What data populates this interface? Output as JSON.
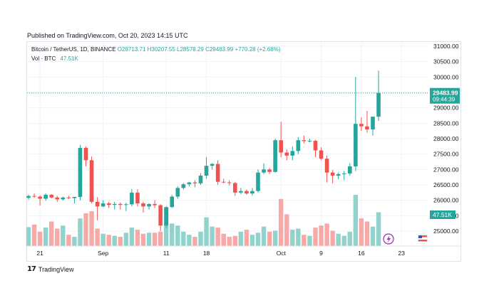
{
  "published_line": "Published on TradingView.com, Oct 20, 2023 14:15 UTC",
  "legend": {
    "symbol": "Bitcoin / TetherUS, 1D, BINANCE",
    "open": "O28713.71",
    "high": "H30207.55",
    "low": "L28578.29",
    "close": "C29483.99",
    "change": "+770.28 (+2.68%)"
  },
  "volume_legend": {
    "label": "Vol · BTC",
    "value": "47.51K"
  },
  "price_label": {
    "value": "29483.99",
    "countdown": "09:44:39"
  },
  "volume_label": "47.51K",
  "footer": {
    "logo": "17",
    "brand": "TradingView"
  },
  "colors": {
    "up": "#26a69a",
    "down": "#ef5350",
    "up_vol": "#92d2cc",
    "down_vol": "#f7a9a7",
    "grid": "#f0f3fa"
  },
  "chart_data": {
    "type": "candlestick",
    "y_axis": {
      "ticks": [
        25000,
        25500,
        26000,
        26500,
        27000,
        27500,
        28000,
        28500,
        29000,
        29500,
        30000,
        30500,
        31000
      ],
      "tick_labels": [
        "25000.00",
        "25500.00",
        "26000.00",
        "26500.00",
        "27000.00",
        "27500.00",
        "28000.00",
        "28500.00",
        "29000.00",
        "29500.00",
        "30000.00",
        "30500.00",
        "31000.00"
      ]
    },
    "x_axis": {
      "labels": [
        {
          "index": 2,
          "text": "21"
        },
        {
          "index": 13,
          "text": "Sep"
        },
        {
          "index": 24,
          "text": "11"
        },
        {
          "index": 31,
          "text": "18"
        },
        {
          "index": 44,
          "text": "Oct"
        },
        {
          "index": 51,
          "text": "9"
        },
        {
          "index": 58,
          "text": "16"
        },
        {
          "index": 65,
          "text": "23"
        }
      ]
    },
    "last_price": 29483.99,
    "ohlc": [
      [
        26080,
        26180,
        26020,
        26140
      ],
      [
        26140,
        26230,
        26080,
        26120
      ],
      [
        26120,
        26160,
        25830,
        26050
      ],
      [
        26050,
        26230,
        25990,
        26180
      ],
      [
        26180,
        26200,
        26060,
        26090
      ],
      [
        26090,
        26140,
        25950,
        26030
      ],
      [
        26030,
        26120,
        25990,
        26090
      ],
      [
        26090,
        26150,
        26040,
        26070
      ],
      [
        26070,
        26110,
        25900,
        26110
      ],
      [
        26110,
        27800,
        26000,
        27700
      ],
      [
        27700,
        27750,
        27100,
        27300
      ],
      [
        27300,
        27420,
        25900,
        25950
      ],
      [
        25950,
        26100,
        25350,
        25800
      ],
      [
        25800,
        26000,
        25780,
        25900
      ],
      [
        25900,
        25950,
        25750,
        25850
      ],
      [
        25850,
        25950,
        25700,
        25880
      ],
      [
        25880,
        25930,
        25700,
        25850
      ],
      [
        25850,
        25920,
        25650,
        25870
      ],
      [
        25870,
        26360,
        25800,
        26250
      ],
      [
        26250,
        26360,
        25800,
        25900
      ],
      [
        25900,
        25950,
        25600,
        25800
      ],
      [
        25800,
        25900,
        25700,
        25880
      ],
      [
        25880,
        26000,
        25750,
        25840
      ],
      [
        25840,
        25880,
        25000,
        25180
      ],
      [
        25180,
        25800,
        25100,
        25780
      ],
      [
        25780,
        26180,
        25750,
        26120
      ],
      [
        26120,
        26450,
        26050,
        26400
      ],
      [
        26400,
        26560,
        26350,
        26520
      ],
      [
        26520,
        26600,
        26450,
        26580
      ],
      [
        26580,
        26650,
        26420,
        26550
      ],
      [
        26550,
        26880,
        26500,
        26800
      ],
      [
        26800,
        27400,
        26700,
        27120
      ],
      [
        27120,
        27200,
        27000,
        27180
      ],
      [
        27180,
        27300,
        26500,
        26600
      ],
      [
        26600,
        26700,
        26550,
        26580
      ],
      [
        26580,
        26650,
        26480,
        26560
      ],
      [
        26560,
        26600,
        26150,
        26250
      ],
      [
        26250,
        26400,
        26200,
        26300
      ],
      [
        26300,
        26350,
        26180,
        26220
      ],
      [
        26220,
        26400,
        26150,
        26300
      ],
      [
        26300,
        27000,
        26250,
        26900
      ],
      [
        26900,
        27200,
        26850,
        27000
      ],
      [
        27000,
        27050,
        26850,
        26920
      ],
      [
        26920,
        28000,
        26900,
        27950
      ],
      [
        27950,
        28550,
        27400,
        27550
      ],
      [
        27550,
        27650,
        27300,
        27450
      ],
      [
        27450,
        27750,
        27300,
        27600
      ],
      [
        27600,
        28050,
        27500,
        27950
      ],
      [
        27950,
        28100,
        27850,
        27920
      ],
      [
        27920,
        28000,
        27880,
        27930
      ],
      [
        27930,
        27960,
        27400,
        27620
      ],
      [
        27620,
        27720,
        27300,
        27350
      ],
      [
        27350,
        27450,
        26580,
        26900
      ],
      [
        26900,
        26980,
        26550,
        26800
      ],
      [
        26800,
        26900,
        26680,
        26850
      ],
      [
        26850,
        26950,
        26650,
        26870
      ],
      [
        26870,
        27200,
        26800,
        27100
      ],
      [
        27100,
        30000,
        26950,
        28480
      ],
      [
        28480,
        28700,
        28250,
        28400
      ],
      [
        28400,
        28900,
        28200,
        28300
      ],
      [
        28300,
        28700,
        28100,
        28713.71
      ],
      [
        28713.71,
        30207.55,
        28578.29,
        29483.99
      ]
    ],
    "volume": [
      0.37,
      0.42,
      0.28,
      0.36,
      0.48,
      0.34,
      0.4,
      0.22,
      0.18,
      0.54,
      0.64,
      0.68,
      0.34,
      0.24,
      0.22,
      0.2,
      0.18,
      0.26,
      0.36,
      0.32,
      0.24,
      0.26,
      0.26,
      0.28,
      0.74,
      0.44,
      0.4,
      0.28,
      0.22,
      0.18,
      0.28,
      0.56,
      0.38,
      0.36,
      0.24,
      0.18,
      0.2,
      0.28,
      0.32,
      0.22,
      0.26,
      0.38,
      0.28,
      0.3,
      0.92,
      0.62,
      0.32,
      0.34,
      0.22,
      0.2,
      0.36,
      0.4,
      0.44,
      0.3,
      0.24,
      0.2,
      0.28,
      1.0,
      0.54,
      0.48,
      0.38,
      0.66
    ]
  }
}
